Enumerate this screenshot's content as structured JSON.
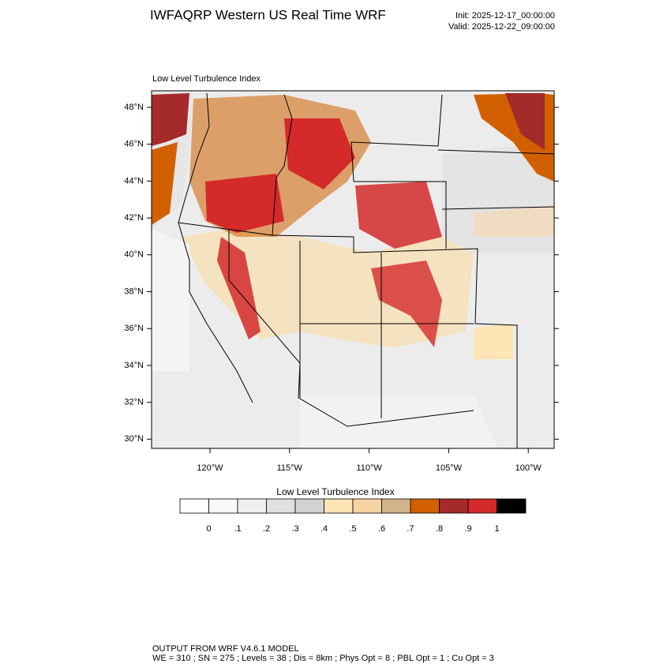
{
  "header": {
    "title": "IWFAQRP Western US Real Time WRF",
    "init": "Init: 2025-12-17_00:00:00",
    "valid": "Valid: 2025-12-22_09:00:00"
  },
  "map": {
    "title": "Low Level Turbulence Index",
    "lat_labels": [
      "48°N",
      "46°N",
      "44°N",
      "42°N",
      "40°N",
      "38°N",
      "36°N",
      "34°N",
      "32°N",
      "30°N"
    ],
    "lon_labels": [
      "120°W",
      "115°W",
      "110°W",
      "105°W",
      "100°W"
    ]
  },
  "colorbar": {
    "title": "Low Level Turbulence Index",
    "colors": [
      "#ffffff",
      "#f8f8f8",
      "#efefef",
      "#e0e0e0",
      "#d3d3d3",
      "#ffe4b5",
      "#f5d3a3",
      "#d2b48c",
      "#d26000",
      "#a52a2a",
      "#d42a2a",
      "#000000"
    ],
    "labels": [
      "0",
      ".1",
      ".2",
      ".3",
      ".4",
      ".5",
      ".6",
      ".7",
      ".8",
      ".9",
      "1"
    ]
  },
  "footer": {
    "line1": "OUTPUT FROM WRF V4.6.1 MODEL",
    "line2": "WE = 310 ; SN = 275 ; Levels = 38 ; Dis = 8km ; Phys Opt = 8 ; PBL Opt = 1 ; Cu Opt = 3"
  }
}
